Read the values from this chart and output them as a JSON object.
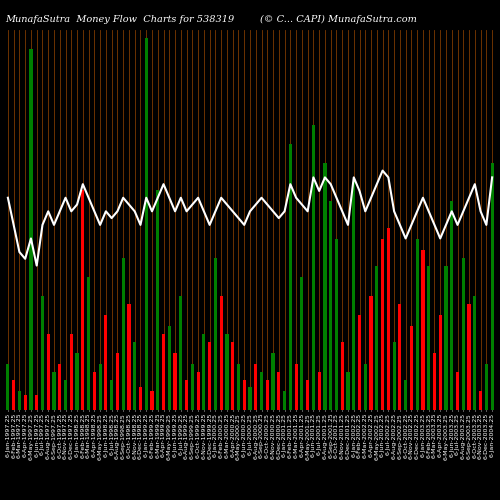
{
  "title_left": "MunafaSutra  Money Flow  Charts for 538319",
  "title_right": "(© C... CAPI) MunafaSutra.com",
  "background_color": "#000000",
  "line_color": "#ffffff",
  "vline_color": "#8B4000",
  "figsize": [
    5.0,
    5.0
  ],
  "dpi": 100,
  "bar_values": [
    12,
    8,
    5,
    4,
    95,
    4,
    30,
    20,
    10,
    12,
    8,
    20,
    15,
    58,
    35,
    10,
    12,
    25,
    8,
    15,
    40,
    28,
    18,
    6,
    98,
    5,
    58,
    20,
    22,
    15,
    30,
    8,
    12,
    10,
    20,
    18,
    40,
    30,
    20,
    18,
    12,
    8,
    6,
    12,
    10,
    8,
    15,
    10,
    5,
    70,
    12,
    35,
    8,
    75,
    10,
    65,
    55,
    45,
    18,
    10,
    60,
    25,
    12,
    30,
    38,
    45,
    48,
    18,
    28,
    8,
    22,
    45,
    42,
    38,
    15,
    25,
    38,
    55,
    10,
    40,
    28,
    30,
    5,
    12,
    65
  ],
  "bar_colors": [
    "green",
    "red",
    "green",
    "red",
    "green",
    "red",
    "green",
    "red",
    "green",
    "red",
    "green",
    "red",
    "green",
    "red",
    "green",
    "red",
    "green",
    "red",
    "green",
    "red",
    "green",
    "red",
    "green",
    "red",
    "green",
    "red",
    "green",
    "red",
    "green",
    "red",
    "green",
    "red",
    "green",
    "red",
    "green",
    "red",
    "green",
    "red",
    "green",
    "red",
    "green",
    "red",
    "green",
    "red",
    "green",
    "red",
    "green",
    "red",
    "green",
    "green",
    "red",
    "green",
    "red",
    "green",
    "red",
    "green",
    "green",
    "green",
    "red",
    "green",
    "green",
    "red",
    "green",
    "red",
    "green",
    "red",
    "red",
    "green",
    "red",
    "green",
    "red",
    "green",
    "red",
    "green",
    "red",
    "red",
    "green",
    "green",
    "red",
    "green",
    "red",
    "green",
    "red",
    "green",
    "green"
  ],
  "line_values": [
    52,
    48,
    44,
    43,
    46,
    42,
    48,
    50,
    48,
    50,
    52,
    50,
    51,
    54,
    52,
    50,
    48,
    50,
    49,
    50,
    52,
    51,
    50,
    48,
    52,
    50,
    52,
    54,
    52,
    50,
    52,
    50,
    51,
    52,
    50,
    48,
    50,
    52,
    51,
    50,
    49,
    48,
    50,
    51,
    52,
    51,
    50,
    49,
    50,
    54,
    52,
    51,
    50,
    55,
    53,
    55,
    54,
    52,
    50,
    48,
    55,
    53,
    50,
    52,
    54,
    56,
    55,
    50,
    48,
    46,
    48,
    50,
    52,
    50,
    48,
    46,
    48,
    50,
    48,
    50,
    52,
    54,
    50,
    48,
    55
  ],
  "x_labels": [
    "6-Jan-1997.25",
    "6-Feb-1997.25",
    "6-Mar-1997.25",
    "6-Apr-1997.25",
    "6-May-1997.25",
    "6-Jun-1997.25",
    "6-Jul-1997.25",
    "6-Aug-1997.25",
    "6-Sep-1997.25",
    "6-Oct-1997.25",
    "6-Nov-1997.25",
    "6-Dec-1997.25",
    "6-Jan-1998.25",
    "6-Feb-1998.25",
    "6-Mar-1998.25",
    "6-Apr-1998.25",
    "6-May-1998.25",
    "6-Jun-1998.25",
    "6-Jul-1998.25",
    "6-Aug-1998.25",
    "6-Sep-1998.25",
    "6-Oct-1998.25",
    "6-Nov-1998.25",
    "6-Dec-1998.25",
    "6-Jan-1999.25",
    "6-Feb-1999.25",
    "6-Mar-1999.25",
    "6-Apr-1999.25",
    "6-May-1999.25",
    "6-Jun-1999.25",
    "6-Jul-1999.25",
    "6-Aug-1999.25",
    "6-Sep-1999.25",
    "6-Oct-1999.25",
    "6-Nov-1999.25",
    "6-Dec-1999.25",
    "6-Jan-2000.25",
    "6-Feb-2000.25",
    "6-Mar-2000.25",
    "6-Apr-2000.25",
    "6-May-2000.25",
    "6-Jun-2000.25",
    "6-Jul-2000.25",
    "6-Aug-2000.25",
    "6-Sep-2000.25",
    "6-Oct-2000.25",
    "6-Nov-2000.25",
    "6-Dec-2000.25",
    "6-Jan-2001.25",
    "6-Feb-2001.25",
    "6-Mar-2001.25",
    "6-Apr-2001.25",
    "6-May-2001.25",
    "6-Jun-2001.25",
    "6-Jul-2001.25",
    "6-Aug-2001.25",
    "6-Sep-2001.25",
    "6-Oct-2001.25",
    "6-Nov-2001.25",
    "6-Dec-2001.25",
    "6-Jan-2002.25",
    "6-Feb-2002.25",
    "6-Mar-2002.25",
    "6-Apr-2002.25",
    "6-May-2002.25",
    "6-Jun-2002.25",
    "6-Jul-2002.25",
    "6-Aug-2002.25",
    "6-Sep-2002.25",
    "6-Oct-2002.25",
    "6-Nov-2002.25",
    "6-Dec-2002.25",
    "6-Jan-2003.25",
    "6-Feb-2003.25",
    "6-Mar-2003.25",
    "6-Apr-2003.25",
    "6-May-2003.25",
    "6-Jun-2003.25",
    "6-Jul-2003.25",
    "6-Aug-2003.25",
    "6-Sep-2003.25",
    "6-Oct-2003.25",
    "6-Nov-2003.25",
    "6-Dec-2003.25",
    "6-Jan-2004.25"
  ],
  "ylim": [
    0,
    100
  ],
  "title_fontsize": 7,
  "label_fontsize": 4.5
}
